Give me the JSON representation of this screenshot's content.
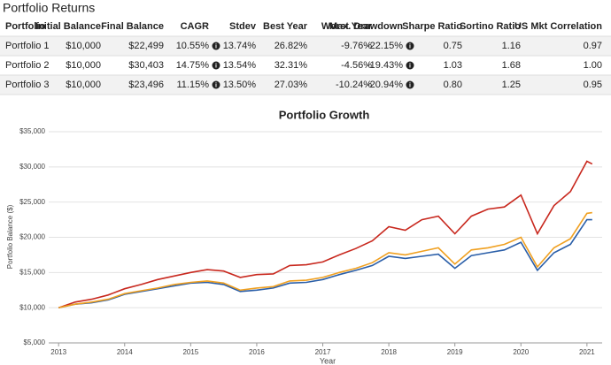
{
  "header": {
    "title": "Portfolio Returns"
  },
  "table": {
    "columns": [
      "Portfolio",
      "Initial Balance",
      "Final Balance",
      "CAGR",
      "Stdev",
      "Best Year",
      "Worst Year",
      "Max. Drawdown",
      "Sharpe Ratio",
      "Sortino Ratio",
      "US Mkt Correlation"
    ],
    "rows": [
      [
        "Portfolio 1",
        "$10,000",
        "$22,499",
        "10.55%",
        "13.74%",
        "26.82%",
        "-9.76%",
        "-22.15%",
        "0.75",
        "1.16",
        "0.97"
      ],
      [
        "Portfolio 2",
        "$10,000",
        "$30,403",
        "14.75%",
        "13.54%",
        "32.31%",
        "-4.56%",
        "-19.43%",
        "1.03",
        "1.68",
        "1.00"
      ],
      [
        "Portfolio 3",
        "$10,000",
        "$23,496",
        "11.15%",
        "13.50%",
        "27.03%",
        "-10.24%",
        "-20.94%",
        "0.80",
        "1.25",
        "0.95"
      ]
    ]
  },
  "chart_data": {
    "type": "line",
    "title": "Portfolio Growth",
    "xlabel": "Year",
    "ylabel": "Portfolio Balance ($)",
    "x": [
      2013,
      2013.25,
      2013.5,
      2013.75,
      2014,
      2014.25,
      2014.5,
      2014.75,
      2015,
      2015.25,
      2015.5,
      2015.75,
      2016,
      2016.25,
      2016.5,
      2016.75,
      2017,
      2017.25,
      2017.5,
      2017.75,
      2018,
      2018.25,
      2018.5,
      2018.75,
      2019,
      2019.25,
      2019.5,
      2019.75,
      2020,
      2020.25,
      2020.5,
      2020.75,
      2021,
      2021.08
    ],
    "series": [
      {
        "name": "Portfolio 1",
        "color": "#2a5ea8",
        "values": [
          10000,
          10500,
          10700,
          11100,
          11900,
          12300,
          12700,
          13100,
          13500,
          13600,
          13300,
          12300,
          12500,
          12800,
          13500,
          13600,
          14000,
          14700,
          15300,
          16000,
          17300,
          17000,
          17300,
          17600,
          15600,
          17400,
          17800,
          18200,
          19300,
          15300,
          17800,
          19000,
          22500,
          22499
        ]
      },
      {
        "name": "Portfolio 2",
        "color": "#c8281e",
        "values": [
          10000,
          10800,
          11200,
          11800,
          12700,
          13300,
          14000,
          14500,
          15000,
          15400,
          15200,
          14300,
          14700,
          14800,
          16000,
          16100,
          16500,
          17500,
          18400,
          19500,
          21500,
          21000,
          22500,
          23000,
          20500,
          23000,
          24000,
          24300,
          26000,
          20500,
          24500,
          26500,
          30800,
          30403
        ]
      },
      {
        "name": "Portfolio 3",
        "color": "#f0a020",
        "values": [
          10000,
          10500,
          10800,
          11200,
          12000,
          12400,
          12800,
          13300,
          13600,
          13800,
          13500,
          12500,
          12800,
          13000,
          13800,
          13900,
          14300,
          15000,
          15600,
          16400,
          17800,
          17500,
          18000,
          18500,
          16200,
          18200,
          18500,
          19000,
          20000,
          15800,
          18500,
          19800,
          23400,
          23496
        ]
      }
    ],
    "xlim": [
      2012.85,
      2021.23
    ],
    "ylim": [
      5000,
      35000
    ],
    "xticks": [
      2013,
      2014,
      2015,
      2016,
      2017,
      2018,
      2019,
      2020,
      2021
    ],
    "yticks": [
      {
        "value": 5000,
        "label": "$5,000"
      },
      {
        "value": 10000,
        "label": "$10,000"
      },
      {
        "value": 15000,
        "label": "$15,000"
      },
      {
        "value": 20000,
        "label": "$20,000"
      },
      {
        "value": 25000,
        "label": "$25,000"
      },
      {
        "value": 30000,
        "label": "$30,000"
      },
      {
        "value": 35000,
        "label": "$35,000"
      }
    ],
    "grid": true
  }
}
